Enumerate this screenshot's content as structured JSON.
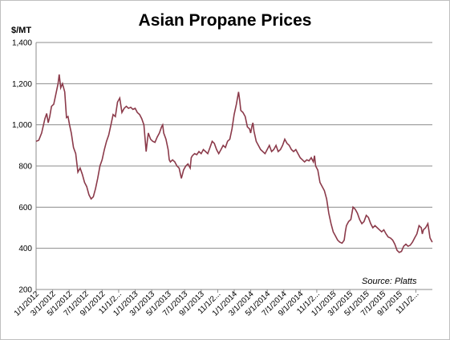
{
  "chart_data": {
    "type": "line",
    "title": "Asian Propane Prices",
    "unit_label": "$/MT",
    "source": "Source: Platts",
    "ylim": [
      200,
      1400
    ],
    "y_ticks": [
      "200",
      "400",
      "600",
      "800",
      "1,000",
      "1,200",
      "1,400"
    ],
    "grid": "horizontal",
    "x_tick_labels": [
      "1/1/2012",
      "3/1/2012",
      "5/1/2012",
      "7/1/2012",
      "9/1/2012",
      "11/1/2...",
      "1/1/2013",
      "3/1/2013",
      "5/1/2013",
      "7/1/2013",
      "9/1/2013",
      "11/1/2...",
      "1/1/2014",
      "3/1/2014",
      "5/1/2014",
      "7/1/2014",
      "9/1/2014",
      "11/1/2...",
      "1/1/2015",
      "3/1/2015",
      "5/1/2015",
      "7/1/2015",
      "9/1/2015",
      "11/1/2..."
    ],
    "series": [
      {
        "color": "#8b3a4a",
        "points": [
          [
            0,
            920
          ],
          [
            0.12,
            925
          ],
          [
            0.25,
            960
          ],
          [
            0.4,
            1030
          ],
          [
            0.48,
            1055
          ],
          [
            0.55,
            1010
          ],
          [
            0.62,
            1040
          ],
          [
            0.7,
            1090
          ],
          [
            0.8,
            1100
          ],
          [
            0.9,
            1150
          ],
          [
            1.0,
            1200
          ],
          [
            1.05,
            1245
          ],
          [
            1.12,
            1180
          ],
          [
            1.2,
            1200
          ],
          [
            1.3,
            1160
          ],
          [
            1.38,
            1035
          ],
          [
            1.45,
            1040
          ],
          [
            1.52,
            1000
          ],
          [
            1.6,
            960
          ],
          [
            1.7,
            890
          ],
          [
            1.8,
            860
          ],
          [
            1.9,
            770
          ],
          [
            2.0,
            790
          ],
          [
            2.1,
            760
          ],
          [
            2.2,
            720
          ],
          [
            2.3,
            700
          ],
          [
            2.4,
            660
          ],
          [
            2.5,
            640
          ],
          [
            2.6,
            650
          ],
          [
            2.7,
            690
          ],
          [
            2.8,
            740
          ],
          [
            2.9,
            800
          ],
          [
            3.0,
            830
          ],
          [
            3.1,
            880
          ],
          [
            3.2,
            920
          ],
          [
            3.3,
            950
          ],
          [
            3.4,
            1000
          ],
          [
            3.5,
            1050
          ],
          [
            3.6,
            1040
          ],
          [
            3.7,
            1110
          ],
          [
            3.8,
            1130
          ],
          [
            3.9,
            1060
          ],
          [
            4.0,
            1080
          ],
          [
            4.1,
            1090
          ],
          [
            4.2,
            1080
          ],
          [
            4.3,
            1085
          ],
          [
            4.4,
            1075
          ],
          [
            4.5,
            1080
          ],
          [
            4.6,
            1060
          ],
          [
            4.7,
            1050
          ],
          [
            4.8,
            1030
          ],
          [
            4.9,
            1000
          ],
          [
            5.0,
            870
          ],
          [
            5.05,
            920
          ],
          [
            5.1,
            960
          ],
          [
            5.2,
            930
          ],
          [
            5.3,
            920
          ],
          [
            5.4,
            915
          ],
          [
            5.5,
            940
          ],
          [
            5.6,
            960
          ],
          [
            5.7,
            990
          ],
          [
            5.75,
            1000
          ],
          [
            5.8,
            960
          ],
          [
            5.9,
            930
          ],
          [
            6.0,
            880
          ],
          [
            6.05,
            830
          ],
          [
            6.1,
            820
          ],
          [
            6.2,
            830
          ],
          [
            6.3,
            820
          ],
          [
            6.4,
            800
          ],
          [
            6.5,
            790
          ],
          [
            6.6,
            740
          ],
          [
            6.65,
            760
          ],
          [
            6.7,
            780
          ],
          [
            6.8,
            800
          ],
          [
            6.9,
            810
          ],
          [
            7.0,
            790
          ],
          [
            7.05,
            840
          ],
          [
            7.1,
            850
          ],
          [
            7.2,
            860
          ],
          [
            7.3,
            855
          ],
          [
            7.4,
            870
          ],
          [
            7.5,
            860
          ],
          [
            7.6,
            880
          ],
          [
            7.7,
            870
          ],
          [
            7.8,
            860
          ],
          [
            7.9,
            890
          ],
          [
            8.0,
            920
          ],
          [
            8.1,
            910
          ],
          [
            8.2,
            880
          ],
          [
            8.3,
            860
          ],
          [
            8.4,
            880
          ],
          [
            8.5,
            900
          ],
          [
            8.6,
            890
          ],
          [
            8.7,
            920
          ],
          [
            8.8,
            930
          ],
          [
            8.9,
            980
          ],
          [
            9.0,
            1050
          ],
          [
            9.1,
            1100
          ],
          [
            9.2,
            1160
          ],
          [
            9.25,
            1120
          ],
          [
            9.3,
            1070
          ],
          [
            9.4,
            1060
          ],
          [
            9.5,
            1040
          ],
          [
            9.6,
            990
          ],
          [
            9.7,
            980
          ],
          [
            9.75,
            960
          ],
          [
            9.8,
            990
          ],
          [
            9.85,
            1010
          ],
          [
            9.9,
            970
          ],
          [
            10.0,
            920
          ],
          [
            10.1,
            900
          ],
          [
            10.2,
            880
          ],
          [
            10.3,
            870
          ],
          [
            10.4,
            860
          ],
          [
            10.5,
            880
          ],
          [
            10.6,
            900
          ],
          [
            10.7,
            870
          ],
          [
            10.8,
            880
          ],
          [
            10.9,
            900
          ],
          [
            11.0,
            870
          ],
          [
            11.1,
            880
          ],
          [
            11.2,
            900
          ],
          [
            11.3,
            930
          ],
          [
            11.4,
            910
          ],
          [
            11.5,
            900
          ],
          [
            11.6,
            880
          ],
          [
            11.7,
            870
          ],
          [
            11.8,
            880
          ],
          [
            11.9,
            860
          ],
          [
            12.0,
            840
          ],
          [
            12.1,
            830
          ],
          [
            12.2,
            820
          ],
          [
            12.3,
            830
          ],
          [
            12.4,
            825
          ],
          [
            12.5,
            840
          ],
          [
            12.6,
            820
          ],
          [
            12.65,
            850
          ],
          [
            12.7,
            800
          ],
          [
            12.8,
            780
          ],
          [
            12.9,
            720
          ],
          [
            13.0,
            700
          ],
          [
            13.1,
            680
          ],
          [
            13.2,
            640
          ],
          [
            13.3,
            570
          ],
          [
            13.4,
            520
          ],
          [
            13.5,
            480
          ],
          [
            13.6,
            460
          ],
          [
            13.7,
            440
          ],
          [
            13.8,
            430
          ],
          [
            13.9,
            425
          ],
          [
            14.0,
            440
          ],
          [
            14.05,
            480
          ],
          [
            14.1,
            510
          ],
          [
            14.2,
            530
          ],
          [
            14.3,
            540
          ],
          [
            14.4,
            600
          ],
          [
            14.5,
            590
          ],
          [
            14.6,
            570
          ],
          [
            14.7,
            540
          ],
          [
            14.8,
            520
          ],
          [
            14.9,
            530
          ],
          [
            15.0,
            560
          ],
          [
            15.1,
            550
          ],
          [
            15.2,
            520
          ],
          [
            15.3,
            500
          ],
          [
            15.4,
            510
          ],
          [
            15.5,
            500
          ],
          [
            15.6,
            490
          ],
          [
            15.7,
            480
          ],
          [
            15.8,
            490
          ],
          [
            15.9,
            470
          ],
          [
            16.0,
            455
          ],
          [
            16.1,
            450
          ],
          [
            16.2,
            440
          ],
          [
            16.3,
            420
          ],
          [
            16.4,
            390
          ],
          [
            16.5,
            380
          ],
          [
            16.6,
            385
          ],
          [
            16.7,
            410
          ],
          [
            16.8,
            420
          ],
          [
            16.9,
            410
          ],
          [
            17.0,
            415
          ],
          [
            17.1,
            430
          ],
          [
            17.2,
            450
          ],
          [
            17.3,
            470
          ],
          [
            17.4,
            510
          ],
          [
            17.5,
            500
          ],
          [
            17.55,
            470
          ],
          [
            17.6,
            490
          ],
          [
            17.7,
            500
          ],
          [
            17.8,
            520
          ],
          [
            17.9,
            450
          ],
          [
            18.0,
            430
          ]
        ]
      }
    ]
  }
}
